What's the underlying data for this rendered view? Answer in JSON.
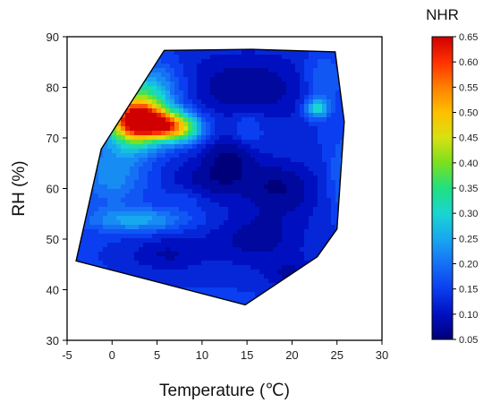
{
  "chart_data": {
    "type": "heatmap",
    "subtype": "filled-contour",
    "xlabel": "Temperature (℃)",
    "ylabel": "RH (%)",
    "x_ticks": [
      -5,
      0,
      5,
      10,
      15,
      20,
      25,
      30
    ],
    "y_ticks": [
      30,
      40,
      50,
      60,
      70,
      80,
      90
    ],
    "xlim": [
      -5,
      30
    ],
    "ylim": [
      30,
      90
    ],
    "colorbar": {
      "title": "NHR",
      "min": 0.05,
      "max": 0.65,
      "ticks": [
        "0.05",
        "0.10",
        "0.15",
        "0.20",
        "0.25",
        "0.30",
        "0.35",
        "0.40",
        "0.45",
        "0.50",
        "0.55",
        "0.60",
        "0.65"
      ],
      "colors": [
        "#00007a",
        "#0010c0",
        "#0a3ef0",
        "#1670f5",
        "#17a8f0",
        "#19d6d0",
        "#20e080",
        "#7ae020",
        "#d8e010",
        "#ffc000",
        "#ff8000",
        "#ff3000",
        "#d00000"
      ],
      "placement": "right"
    },
    "domain_boundary": [
      [
        -4,
        45.7
      ],
      [
        14.8,
        37.0
      ],
      [
        22.8,
        46.5
      ],
      [
        25.0,
        52.0
      ],
      [
        25.8,
        73.2
      ],
      [
        24.8,
        87.0
      ],
      [
        15.5,
        87.5
      ],
      [
        5.8,
        87.3
      ],
      [
        -1.2,
        67.8
      ]
    ],
    "background_value": 0.14,
    "features": [
      {
        "x": 2.6,
        "y": 73.8,
        "value": 0.63,
        "sx": 2.1,
        "sy": 3.6
      },
      {
        "x": 5.0,
        "y": 73.0,
        "value": 0.5,
        "sx": 2.6,
        "sy": 2.0
      },
      {
        "x": 7.2,
        "y": 71.5,
        "value": 0.36,
        "sx": 1.8,
        "sy": 1.8
      },
      {
        "x": 4.5,
        "y": 80.0,
        "value": 0.26,
        "sx": 2.5,
        "sy": 3.5
      },
      {
        "x": 0.0,
        "y": 63.0,
        "value": 0.24,
        "sx": 2.6,
        "sy": 4.5
      },
      {
        "x": 2.8,
        "y": 53.8,
        "value": 0.26,
        "sx": 3.8,
        "sy": 1.6
      },
      {
        "x": 22.8,
        "y": 75.8,
        "value": 0.32,
        "sx": 0.9,
        "sy": 1.3
      },
      {
        "x": 23.5,
        "y": 81.0,
        "value": 0.22,
        "sx": 1.6,
        "sy": 4.0
      },
      {
        "x": 26.0,
        "y": 62.5,
        "value": 0.22,
        "sx": 1.2,
        "sy": 5.0
      },
      {
        "x": 15.0,
        "y": 80.0,
        "value": 0.06,
        "sx": 6.0,
        "sy": 5.0
      },
      {
        "x": 11.5,
        "y": 62.0,
        "value": 0.06,
        "sx": 3.5,
        "sy": 3.0
      },
      {
        "x": 19.0,
        "y": 60.0,
        "value": 0.06,
        "sx": 3.0,
        "sy": 4.0
      },
      {
        "x": 16.0,
        "y": 50.0,
        "value": 0.07,
        "sx": 4.0,
        "sy": 4.0
      },
      {
        "x": 6.0,
        "y": 47.0,
        "value": 0.08,
        "sx": 3.0,
        "sy": 2.5
      },
      {
        "x": 20.0,
        "y": 43.0,
        "value": 0.08,
        "sx": 2.0,
        "sy": 2.0
      },
      {
        "x": 15.0,
        "y": 72.0,
        "value": 0.19,
        "sx": 1.2,
        "sy": 2.5
      },
      {
        "x": 13.0,
        "y": 67.0,
        "value": 0.07,
        "sx": 2.0,
        "sy": 2.5
      },
      {
        "x": 8.0,
        "y": 58.0,
        "value": 0.17,
        "sx": 1.5,
        "sy": 1.5
      }
    ]
  }
}
